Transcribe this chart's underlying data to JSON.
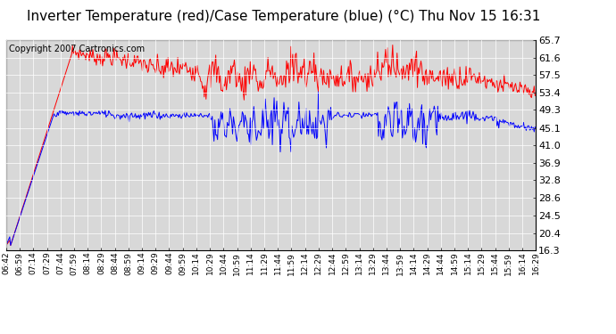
{
  "title": "Inverter Temperature (red)/Case Temperature (blue) (°C) Thu Nov 15 16:31",
  "copyright": "Copyright 2007 Cartronics.com",
  "ymin": 16.3,
  "ymax": 65.7,
  "yticks": [
    65.7,
    61.6,
    57.5,
    53.4,
    49.3,
    45.1,
    41.0,
    36.9,
    32.8,
    28.6,
    24.5,
    20.4,
    16.3
  ],
  "red_color": "#ff0000",
  "blue_color": "#0000ff",
  "bg_color": "#ffffff",
  "plot_bg_color": "#d8d8d8",
  "grid_color": "#ffffff",
  "title_fontsize": 11,
  "copyright_fontsize": 7,
  "tick_fontsize": 8,
  "xtick_labels": [
    "06:42",
    "06:59",
    "07:14",
    "07:29",
    "07:44",
    "07:59",
    "08:14",
    "08:29",
    "08:44",
    "08:59",
    "09:14",
    "09:29",
    "09:44",
    "09:59",
    "10:14",
    "10:29",
    "10:44",
    "10:59",
    "11:14",
    "11:29",
    "11:44",
    "11:59",
    "12:14",
    "12:29",
    "12:44",
    "12:59",
    "13:14",
    "13:29",
    "13:44",
    "13:59",
    "14:14",
    "14:29",
    "14:44",
    "14:59",
    "15:14",
    "15:29",
    "15:44",
    "15:59",
    "16:14",
    "16:29"
  ]
}
